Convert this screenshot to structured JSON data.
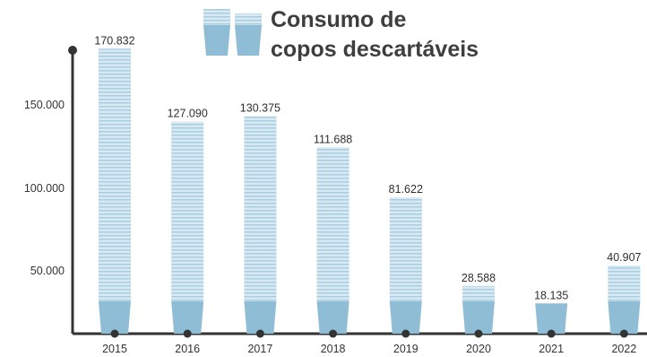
{
  "chart_data": {
    "type": "bar",
    "title_lines": [
      "Consumo de",
      "copos descartáveis"
    ],
    "categories": [
      "2015",
      "2016",
      "2017",
      "2018",
      "2019",
      "2020",
      "2021",
      "2022"
    ],
    "values": [
      170832,
      127090,
      130375,
      111688,
      81622,
      28588,
      18135,
      40907
    ],
    "value_labels": [
      "170.832",
      "127.090",
      "130.375",
      "111.688",
      "81.622",
      "28.588",
      "18.135",
      "40.907"
    ],
    "yticks": [
      50000,
      100000,
      150000
    ],
    "ytick_labels": [
      "50.000",
      "100.000",
      "150.000"
    ],
    "ylim": [
      0,
      180000
    ],
    "xlabel": "",
    "ylabel": "",
    "grid": false,
    "legend": "none"
  },
  "colors": {
    "bar_fill": "#d7e9f3",
    "bar_stripe": "#9fc6dc",
    "cup_base": "#8fbdd6",
    "axis": "#333333",
    "text": "#333333"
  },
  "icon": "stacked-cups-icon"
}
